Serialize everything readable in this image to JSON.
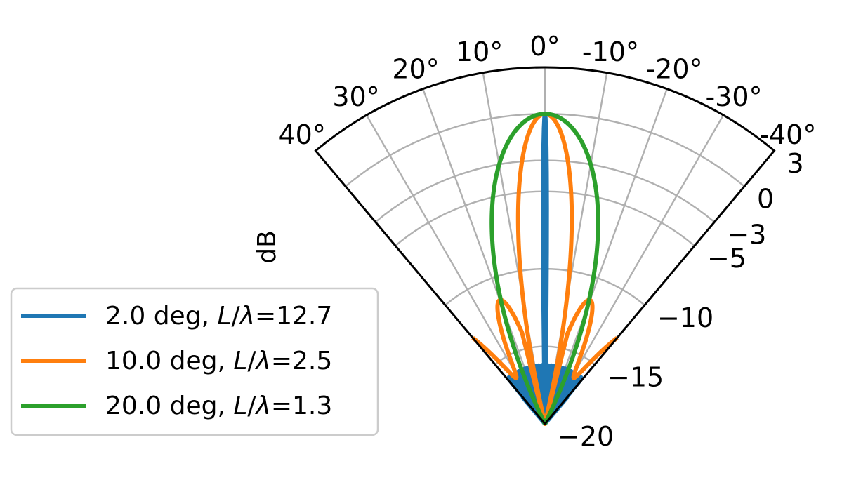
{
  "chart_data": {
    "type": "line",
    "projection": "polar",
    "theta_range_deg": [
      -40,
      40
    ],
    "theta_direction": "counter-clockwise, 0° at top",
    "theta_ticks": [
      40,
      30,
      20,
      10,
      0,
      -10,
      -20,
      -30,
      -40
    ],
    "theta_tick_labels": [
      "40°",
      "30°",
      "20°",
      "10°",
      "0°",
      "-10°",
      "-20°",
      "-30°",
      "-40°"
    ],
    "r_range": [
      -20,
      3
    ],
    "r_ticks": [
      -20,
      -15,
      -10,
      -5,
      -3,
      0,
      3
    ],
    "r_tick_labels": [
      "−20",
      "−15",
      "−10",
      "−5",
      "−3",
      "0",
      "3"
    ],
    "r_label": "dB",
    "grid": true,
    "legend_position": "lower-left",
    "series": [
      {
        "name": "2.0 deg, L/λ=12.7",
        "name_parts": [
          "2.0 deg, ",
          "L",
          "/",
          "λ",
          "=12.7"
        ],
        "color": "#1f77b4",
        "beamwidth_deg": 2.0,
        "length_over_lambda": 12.7
      },
      {
        "name": "10.0 deg, L/λ=2.5",
        "name_parts": [
          "10.0 deg, ",
          "L",
          "/",
          "λ",
          "=2.5"
        ],
        "color": "#ff7f0e",
        "beamwidth_deg": 10.0,
        "length_over_lambda": 2.5
      },
      {
        "name": "20.0 deg, L/λ=1.3",
        "name_parts": [
          "20.0 deg, ",
          "L",
          "/",
          "λ",
          "=1.3"
        ],
        "color": "#2ca02c",
        "beamwidth_deg": 20.0,
        "length_over_lambda": 1.3
      }
    ]
  }
}
